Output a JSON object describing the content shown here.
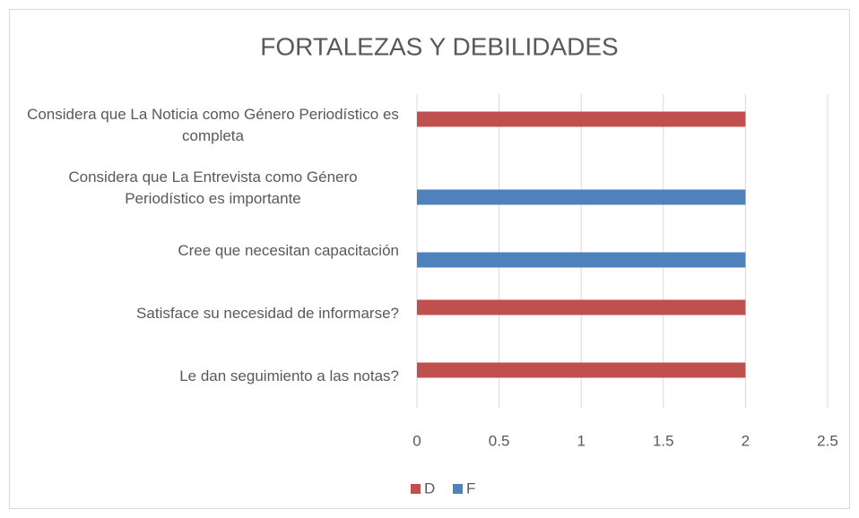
{
  "chart_data": {
    "type": "hbar",
    "title": "FORTALEZAS Y DEBILIDADES",
    "categories": [
      "Considera que La Noticia como Género Periodístico es completa",
      "Considera que La Entrevista como Género Periodístico es importante",
      "Cree que necesitan capacitación",
      "Satisface su necesidad de informarse?",
      "Le dan seguimiento a las notas?"
    ],
    "series": [
      {
        "name": "D",
        "color": "#c0504d",
        "values": [
          2,
          null,
          null,
          2,
          2
        ]
      },
      {
        "name": "F",
        "color": "#4f81bd",
        "values": [
          null,
          2,
          2,
          null,
          null
        ]
      }
    ],
    "xlim": [
      0,
      2.5
    ],
    "xticks": [
      0,
      0.5,
      1,
      1.5,
      2,
      2.5
    ],
    "grid": true,
    "legend": "bottom"
  }
}
